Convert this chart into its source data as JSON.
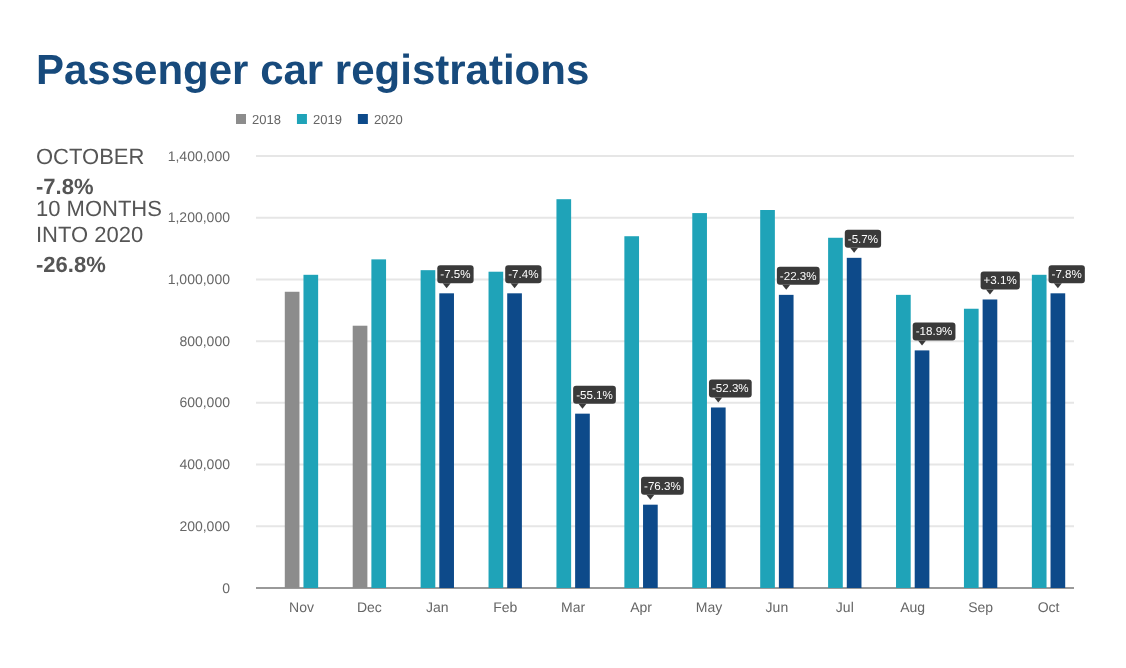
{
  "chart_data": {
    "type": "bar",
    "title": "Passenger car registrations",
    "categories": [
      "Nov",
      "Dec",
      "Jan",
      "Feb",
      "Mar",
      "Apr",
      "May",
      "Jun",
      "Jul",
      "Aug",
      "Sep",
      "Oct"
    ],
    "series": [
      {
        "name": "2018",
        "color": "#8c8c8c",
        "values": [
          960000,
          850000,
          null,
          null,
          null,
          null,
          null,
          null,
          null,
          null,
          null,
          null
        ]
      },
      {
        "name": "2019",
        "color": "#1fa3b8",
        "values": [
          1015000,
          1065000,
          1030000,
          1025000,
          1260000,
          1140000,
          1215000,
          1225000,
          1135000,
          950000,
          905000,
          1015000
        ]
      },
      {
        "name": "2020",
        "color": "#0d4a8a",
        "values": [
          null,
          null,
          955000,
          955000,
          565000,
          270000,
          585000,
          950000,
          1070000,
          770000,
          935000,
          955000
        ]
      }
    ],
    "ylim": [
      0,
      1400000
    ],
    "yticks": [
      {
        "value": 0,
        "label": "0"
      },
      {
        "value": 200000,
        "label": "200,000"
      },
      {
        "value": 400000,
        "label": "400,000"
      },
      {
        "value": 600000,
        "label": "600,000"
      },
      {
        "value": 800000,
        "label": "800,000"
      },
      {
        "value": 1000000,
        "label": "1,000,000"
      },
      {
        "value": 1200000,
        "label": "1,200,000"
      },
      {
        "value": 1400000,
        "label": "1,400,000"
      }
    ],
    "grid": "y",
    "legend": "top left",
    "annotations": [
      "OCTOBER",
      "-7.8%",
      "10 MONTHS INTO 2020",
      "-26.8%",
      {
        "text": "-7.5%",
        "x": "Jan",
        "y": 955000
      },
      {
        "text": "-7.4%",
        "x": "Feb",
        "y": 955000
      },
      {
        "text": "-55.1%",
        "x": "Mar",
        "y": 565000
      },
      {
        "text": "-76.3%",
        "x": "Apr",
        "y": 270000
      },
      {
        "text": "-52.3%",
        "x": "May",
        "y": 585000
      },
      {
        "text": "-22.3%",
        "x": "Jun",
        "y": 950000
      },
      {
        "text": "-5.7%",
        "x": "Jul",
        "y": 1070000
      },
      {
        "text": "-18.9%",
        "x": "Aug",
        "y": 770000
      },
      {
        "text": "+3.1%",
        "x": "Sep",
        "y": 935000
      },
      {
        "text": "-7.8%",
        "x": "Oct",
        "y": 955000
      }
    ]
  }
}
